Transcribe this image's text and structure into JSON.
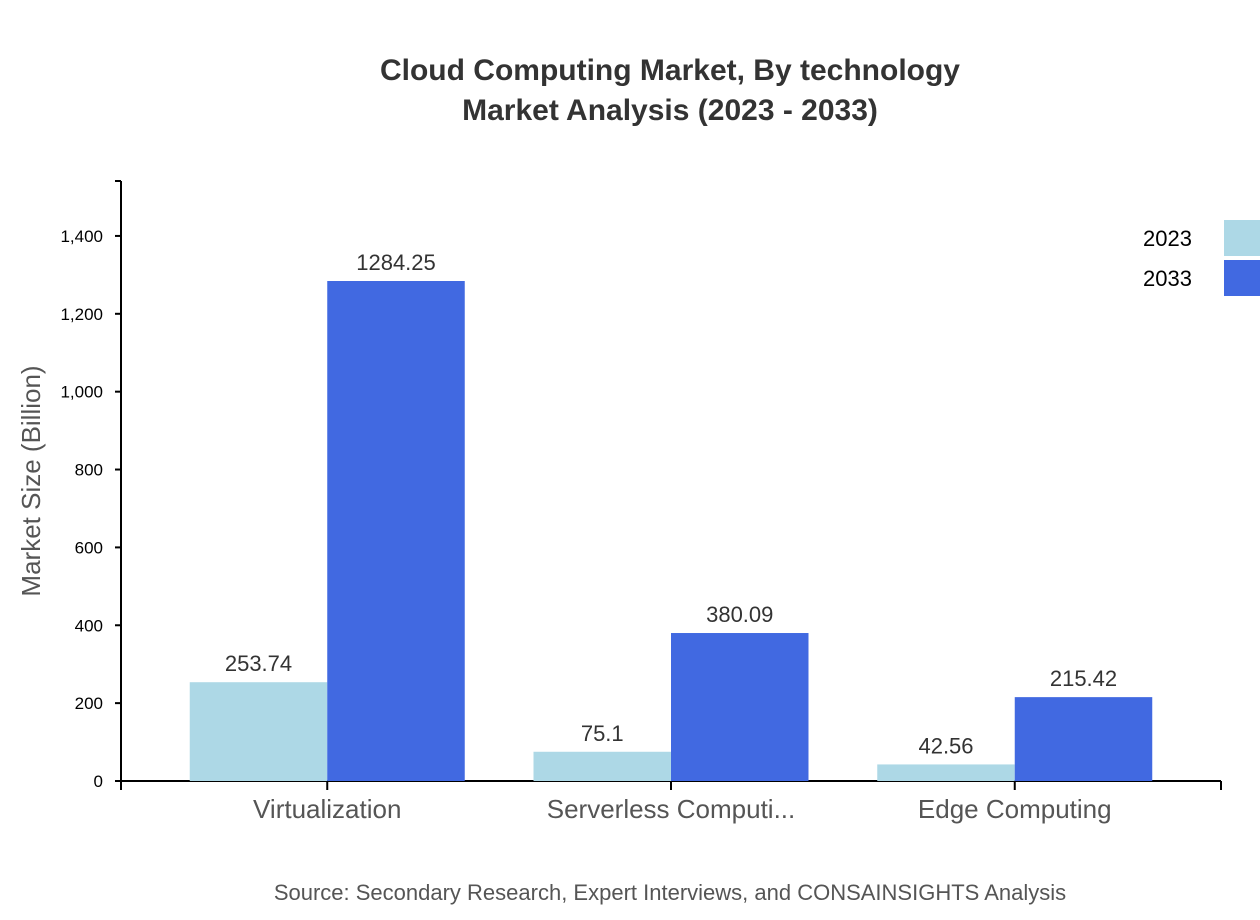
{
  "chart_data": {
    "type": "bar",
    "title": "Cloud Computing Market, By technology",
    "subtitle": "Market Analysis (2023 - 2033)",
    "ylabel": "Market Size (Billion)",
    "xlabel": "",
    "categories": [
      "Virtualization",
      "Serverless Computi...",
      "Edge Computing"
    ],
    "series": [
      {
        "name": "2023",
        "color": "#ADD8E6",
        "values": [
          253.74,
          75.1,
          42.56
        ]
      },
      {
        "name": "2033",
        "color": "#4169E1",
        "values": [
          1284.25,
          380.09,
          215.42
        ]
      }
    ],
    "ylim": [
      0,
      1541.1
    ],
    "yticks": [
      0,
      200,
      400,
      600,
      800,
      1000,
      1200,
      1400
    ],
    "grid": false,
    "legend": "top-right",
    "source": "Source: Secondary Research, Expert Interviews, and CONSAINSIGHTS Analysis"
  }
}
